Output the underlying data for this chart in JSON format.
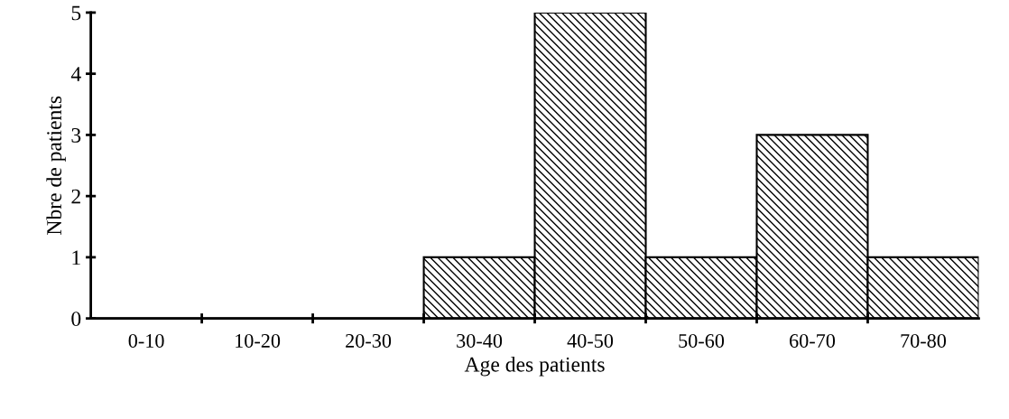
{
  "chart_data": {
    "type": "bar",
    "xlabel": "Age des patients",
    "ylabel": "Nbre de patients",
    "categories": [
      "0-10",
      "10-20",
      "20-30",
      "30-40",
      "40-50",
      "50-60",
      "60-70",
      "70-80"
    ],
    "values": [
      0,
      0,
      0,
      1,
      5,
      1,
      3,
      1
    ],
    "color": "#000000",
    "ylim": [
      0,
      5
    ],
    "yticks": [
      0,
      1,
      2,
      3,
      4,
      5
    ],
    "grid": false
  }
}
